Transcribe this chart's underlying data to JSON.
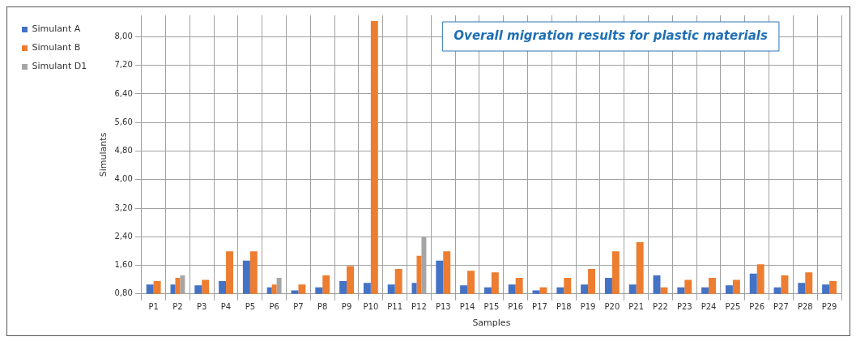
{
  "chart_data": {
    "type": "bar",
    "title": "Overall migration results for plastic materials",
    "xlabel": "Samples",
    "ylabel": "Simulants",
    "categories": [
      "P1",
      "P2",
      "P3",
      "P4",
      "P5",
      "P6",
      "P7",
      "P8",
      "P9",
      "P10",
      "P11",
      "P12",
      "P13",
      "P14",
      "P15",
      "P16",
      "P17",
      "P18",
      "P19",
      "P20",
      "P21",
      "P22",
      "P23",
      "P24",
      "P25",
      "P26",
      "P27",
      "P28",
      "P29"
    ],
    "series": [
      {
        "name": "Simulant A",
        "color": "#4472c4",
        "values": [
          1.06,
          1.06,
          1.04,
          1.16,
          1.73,
          0.98,
          0.9,
          0.98,
          1.16,
          1.11,
          1.06,
          1.11,
          1.73,
          1.04,
          0.98,
          1.06,
          0.9,
          0.98,
          1.06,
          1.25,
          1.06,
          1.32,
          0.98,
          0.98,
          1.04,
          1.37,
          0.98,
          1.11,
          1.06
        ]
      },
      {
        "name": "Simulant B",
        "color": "#ed7d31",
        "values": [
          1.16,
          1.25,
          1.19,
          1.99,
          1.99,
          1.06,
          1.06,
          1.32,
          1.58,
          8.44,
          1.5,
          1.87,
          1.99,
          1.45,
          1.4,
          1.25,
          0.98,
          1.25,
          1.5,
          1.99,
          2.25,
          0.98,
          1.19,
          1.25,
          1.19,
          1.63,
          1.32,
          1.4,
          1.16
        ]
      },
      {
        "name": "Simulant D1",
        "color": "#a5a5a5",
        "values": [
          null,
          1.32,
          null,
          null,
          null,
          1.25,
          null,
          null,
          null,
          null,
          null,
          2.39,
          null,
          null,
          null,
          null,
          null,
          null,
          null,
          null,
          null,
          null,
          null,
          null,
          null,
          null,
          null,
          null,
          null
        ]
      }
    ],
    "ylim": [
      0.8,
      8.6
    ],
    "yticks": [
      {
        "value": 0.8,
        "label": "0,80"
      },
      {
        "value": 1.6,
        "label": "1,60"
      },
      {
        "value": 2.4,
        "label": "2,40"
      },
      {
        "value": 3.2,
        "label": "3,20"
      },
      {
        "value": 4.0,
        "label": "4,00"
      },
      {
        "value": 4.8,
        "label": "4,80"
      },
      {
        "value": 5.6,
        "label": "5,60"
      },
      {
        "value": 6.4,
        "label": "6,40"
      },
      {
        "value": 7.2,
        "label": "7,20"
      },
      {
        "value": 8.0,
        "label": "8,00"
      }
    ],
    "grid": true,
    "legend": "left"
  }
}
